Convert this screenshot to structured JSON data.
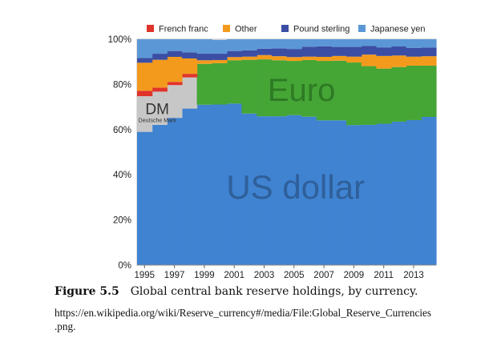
{
  "chart_data": {
    "type": "area",
    "stacked": true,
    "normalized": true,
    "x": [
      1995,
      1996,
      1997,
      1998,
      1999,
      2000,
      2001,
      2002,
      2003,
      2004,
      2005,
      2006,
      2007,
      2008,
      2009,
      2010,
      2011,
      2012,
      2013,
      2014
    ],
    "x_tick_labels": [
      "1995",
      "1997",
      "1999",
      "2001",
      "2003",
      "2005",
      "2007",
      "2009",
      "2011",
      "2013"
    ],
    "y_tick_labels": [
      "0%",
      "20%",
      "40%",
      "60%",
      "80%",
      "100%"
    ],
    "ylim": [
      0,
      100
    ],
    "legend_position": "top",
    "legend": [
      {
        "name": "French franc",
        "color": "#e0332a"
      },
      {
        "name": "Other",
        "color": "#f39a1c"
      },
      {
        "name": "Pound sterling",
        "color": "#3b4ea3"
      },
      {
        "name": "Japanese yen",
        "color": "#5b97d6"
      }
    ],
    "series": [
      {
        "name": "US dollar",
        "color": "#3f83d1",
        "values": [
          59.0,
          62.1,
          65.2,
          69.3,
          71.0,
          71.1,
          71.5,
          67.1,
          65.9,
          65.9,
          66.4,
          65.7,
          64.1,
          64.1,
          62.0,
          62.1,
          62.6,
          63.5,
          64.2,
          65.6
        ]
      },
      {
        "name": "Deutsche Mark",
        "color": "#c7c7c7",
        "values": [
          15.8,
          14.7,
          14.5,
          13.8,
          0,
          0,
          0,
          0,
          0,
          0,
          0,
          0,
          0,
          0,
          0,
          0,
          0,
          0,
          0,
          0
        ]
      },
      {
        "name": "Euro",
        "color": "#45a535",
        "values": [
          0,
          0,
          0,
          0,
          18.1,
          18.3,
          19.2,
          23.8,
          25.2,
          24.8,
          24.0,
          25.1,
          26.3,
          26.4,
          27.7,
          26.0,
          24.4,
          24.2,
          24.1,
          22.7
        ]
      },
      {
        "name": "French franc",
        "color": "#e0332a",
        "values": [
          2.4,
          1.8,
          1.4,
          1.6,
          0,
          0,
          0,
          0,
          0,
          0,
          0,
          0,
          0,
          0,
          0,
          0,
          0,
          0,
          0,
          0
        ]
      },
      {
        "name": "Other",
        "color": "#f39a1c",
        "values": [
          12.4,
          12.3,
          11.1,
          6.8,
          1.6,
          1.4,
          1.4,
          1.4,
          1.9,
          1.8,
          1.7,
          1.5,
          1.8,
          2.1,
          2.6,
          5.1,
          5.6,
          5.1,
          4.0,
          4.2
        ]
      },
      {
        "name": "Pound sterling",
        "color": "#3b4ea3",
        "values": [
          2.1,
          2.7,
          2.6,
          2.7,
          2.9,
          2.8,
          2.7,
          2.8,
          2.8,
          3.4,
          3.6,
          4.4,
          4.7,
          4.0,
          4.3,
          3.9,
          3.8,
          4.0,
          3.9,
          3.8
        ]
      },
      {
        "name": "Japanese yen",
        "color": "#5b97d6",
        "values": [
          8.3,
          6.4,
          5.2,
          5.8,
          6.4,
          6.1,
          5.2,
          4.9,
          4.2,
          4.1,
          4.3,
          3.3,
          3.1,
          3.4,
          3.4,
          2.9,
          3.6,
          3.2,
          3.8,
          3.7
        ]
      }
    ],
    "annotations": [
      {
        "text": "US dollar",
        "series": "US dollar"
      },
      {
        "text": "Euro",
        "series": "Euro"
      },
      {
        "text": "DM",
        "series": "Deutsche Mark"
      },
      {
        "text": "Deutsche Mark",
        "series": "Deutsche Mark"
      }
    ]
  },
  "caption": {
    "label": "Figure 5.5",
    "text": "Global central bank reserve holdings, by currency.",
    "source_line1": "https://en.wikipedia.org/wiki/Reserve_currency#/media/File:Global_Reserve_Currencies",
    "source_line2": ".png."
  }
}
